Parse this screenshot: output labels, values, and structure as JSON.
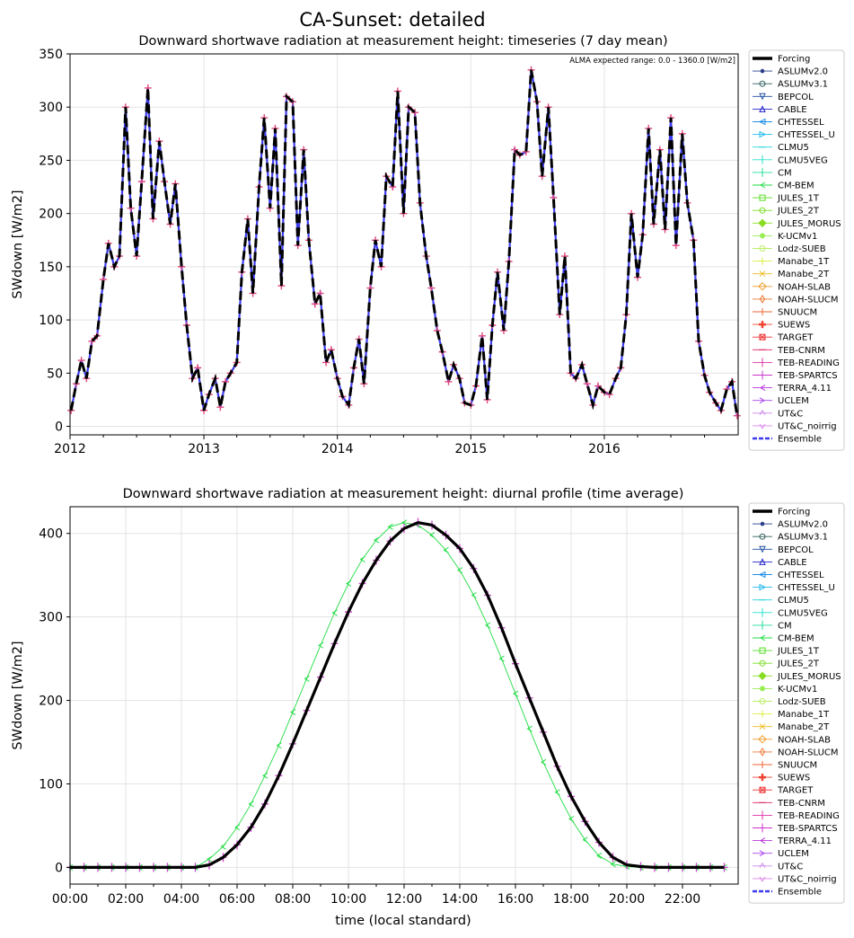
{
  "suptitle": "CA-Sunset: detailed",
  "chart_data": [
    {
      "type": "line",
      "title": "Downward shortwave radiation at measurement height: timeseries (7 day mean)",
      "annotation": "ALMA expected range: 0.0 - 1360.0 [W/m2]",
      "ylabel": "SWdown [W/m2]",
      "xlabel": "",
      "xlim": [
        "2012-01-01",
        "2017-01-01"
      ],
      "ylim": [
        -8,
        350
      ],
      "xticks": [
        "2012",
        "2013",
        "2014",
        "2015",
        "2016"
      ],
      "yticks": [
        "0",
        "50",
        "100",
        "150",
        "200",
        "250",
        "300",
        "350"
      ],
      "grid": true,
      "legend_position": "outside-right",
      "series": [
        {
          "name": "Forcing",
          "x": [
            "2012-01-04",
            "2012-01-18",
            "2012-02-01",
            "2012-02-15",
            "2012-03-01",
            "2012-03-15",
            "2012-04-01",
            "2012-04-15",
            "2012-05-01",
            "2012-05-15",
            "2012-06-01",
            "2012-06-15",
            "2012-07-01",
            "2012-07-15",
            "2012-08-01",
            "2012-08-15",
            "2012-09-01",
            "2012-09-15",
            "2012-10-01",
            "2012-10-15",
            "2012-11-01",
            "2012-11-15",
            "2012-12-01",
            "2012-12-15",
            "2013-01-01",
            "2013-01-15",
            "2013-02-01",
            "2013-02-15",
            "2013-03-01",
            "2013-03-15",
            "2013-04-01",
            "2013-04-15",
            "2013-05-01",
            "2013-05-15",
            "2013-06-01",
            "2013-06-15",
            "2013-07-01",
            "2013-07-15",
            "2013-08-01",
            "2013-08-15",
            "2013-09-01",
            "2013-09-15",
            "2013-10-01",
            "2013-10-15",
            "2013-11-01",
            "2013-11-15",
            "2013-12-01",
            "2013-12-15",
            "2014-01-01",
            "2014-01-15",
            "2014-02-01",
            "2014-02-15",
            "2014-03-01",
            "2014-03-15",
            "2014-04-01",
            "2014-04-15",
            "2014-05-01",
            "2014-05-15",
            "2014-06-01",
            "2014-06-15",
            "2014-07-01",
            "2014-07-15",
            "2014-08-01",
            "2014-08-15",
            "2014-09-01",
            "2014-09-15",
            "2014-10-01",
            "2014-10-15",
            "2014-11-01",
            "2014-11-15",
            "2014-12-01",
            "2014-12-15",
            "2015-01-01",
            "2015-01-15",
            "2015-02-01",
            "2015-02-15",
            "2015-03-01",
            "2015-03-15",
            "2015-04-01",
            "2015-04-15",
            "2015-05-01",
            "2015-05-15",
            "2015-06-01",
            "2015-06-15",
            "2015-07-01",
            "2015-07-15",
            "2015-08-01",
            "2015-08-15",
            "2015-09-01",
            "2015-09-15",
            "2015-10-01",
            "2015-10-15",
            "2015-11-01",
            "2015-11-15",
            "2015-12-01",
            "2015-12-15",
            "2016-01-01",
            "2016-01-15",
            "2016-02-01",
            "2016-02-15",
            "2016-03-01",
            "2016-03-15",
            "2016-04-01",
            "2016-04-15",
            "2016-05-01",
            "2016-05-15",
            "2016-06-01",
            "2016-06-15",
            "2016-07-01",
            "2016-07-15",
            "2016-08-01",
            "2016-08-15",
            "2016-09-01",
            "2016-09-15",
            "2016-10-01",
            "2016-10-15",
            "2016-11-01",
            "2016-11-15",
            "2016-12-01",
            "2016-12-15",
            "2016-12-29"
          ],
          "values": [
            15,
            40,
            62,
            45,
            80,
            85,
            138,
            172,
            150,
            160,
            300,
            205,
            160,
            230,
            318,
            195,
            268,
            230,
            190,
            228,
            150,
            95,
            45,
            55,
            15,
            30,
            45,
            18,
            42,
            50,
            60,
            145,
            195,
            125,
            225,
            290,
            205,
            280,
            132,
            310,
            305,
            170,
            260,
            175,
            115,
            125,
            60,
            72,
            45,
            28,
            20,
            55,
            82,
            40,
            130,
            175,
            150,
            235,
            225,
            315,
            200,
            300,
            295,
            210,
            160,
            130,
            90,
            70,
            42,
            58,
            45,
            22,
            20,
            38,
            85,
            25,
            95,
            145,
            90,
            155,
            260,
            255,
            258,
            335,
            305,
            235,
            300,
            215,
            105,
            160,
            50,
            45,
            58,
            40,
            20,
            38,
            32,
            30,
            45,
            55,
            105,
            200,
            140,
            180,
            280,
            190,
            260,
            185,
            290,
            170,
            275,
            210,
            175,
            80,
            48,
            32,
            22,
            15,
            35,
            42,
            10
          ]
        },
        {
          "name": "Ensemble",
          "x": [
            "2012-01-04",
            "2012-03-15",
            "2012-07-01",
            "2012-11-15",
            "2013-07-01",
            "2013-12-15",
            "2014-07-01",
            "2014-12-15",
            "2015-07-01",
            "2015-12-15",
            "2016-07-01",
            "2016-12-29"
          ],
          "values": [
            15,
            85,
            160,
            95,
            205,
            72,
            200,
            22,
            305,
            38,
            275,
            10
          ]
        }
      ]
    },
    {
      "type": "line",
      "title": "Downward shortwave radiation at measurement height: diurnal profile (time average)",
      "ylabel": "SWdown [W/m2]",
      "xlabel": "time (local standard)",
      "xlim": [
        0,
        24
      ],
      "ylim": [
        -20,
        432
      ],
      "xticks": [
        "00:00",
        "02:00",
        "04:00",
        "06:00",
        "08:00",
        "10:00",
        "12:00",
        "14:00",
        "16:00",
        "18:00",
        "20:00",
        "22:00"
      ],
      "yticks": [
        "0",
        "100",
        "200",
        "300",
        "400"
      ],
      "grid": true,
      "legend_position": "outside-right",
      "series": [
        {
          "name": "Forcing",
          "x": [
            0,
            0.5,
            1,
            1.5,
            2,
            2.5,
            3,
            3.5,
            4,
            4.5,
            5,
            5.5,
            6,
            6.5,
            7,
            7.5,
            8,
            8.5,
            9,
            9.5,
            10,
            10.5,
            11,
            11.5,
            12,
            12.5,
            13,
            13.5,
            14,
            14.5,
            15,
            15.5,
            16,
            16.5,
            17,
            17.5,
            18,
            18.5,
            19,
            19.5,
            20,
            20.5,
            21,
            21.5,
            22,
            22.5,
            23,
            23.5
          ],
          "values": [
            0,
            0,
            0,
            0,
            0,
            0,
            0,
            0,
            0,
            0,
            3,
            12,
            27,
            48,
            76,
            110,
            148,
            188,
            228,
            268,
            306,
            340,
            368,
            391,
            406,
            413,
            410,
            398,
            382,
            358,
            326,
            287,
            244,
            203,
            162,
            121,
            85,
            55,
            30,
            12,
            3,
            1,
            0,
            0,
            0,
            0,
            0,
            0
          ]
        },
        {
          "name": "CM-BEM",
          "x": [
            0,
            0.5,
            1,
            1.5,
            2,
            2.5,
            3,
            3.5,
            4,
            4.5,
            5,
            5.5,
            6,
            6.5,
            7,
            7.5,
            8,
            8.5,
            9,
            9.5,
            10,
            10.5,
            11,
            11.5,
            12,
            12.5,
            13,
            13.5,
            14,
            14.5,
            15,
            15.5,
            16,
            16.5,
            17,
            17.5,
            18,
            18.5,
            19,
            19.5,
            20,
            20.5,
            21,
            21.5,
            22,
            22.5,
            23,
            23.5
          ],
          "values": [
            0,
            0,
            0,
            0,
            0,
            0,
            0,
            0,
            0,
            0,
            10,
            25,
            48,
            76,
            110,
            146,
            186,
            226,
            266,
            305,
            340,
            369,
            392,
            408,
            413,
            410,
            398,
            380,
            356,
            326,
            290,
            250,
            208,
            166,
            126,
            90,
            58,
            33,
            14,
            4,
            1,
            0,
            0,
            0,
            0,
            0,
            0,
            0
          ]
        }
      ]
    }
  ],
  "legend": [
    {
      "name": "Forcing",
      "color": "#000000",
      "marker": "none",
      "style": "thick"
    },
    {
      "name": "ASLUMv2.0",
      "color": "#2a3f8a",
      "marker": "dot",
      "style": "solid"
    },
    {
      "name": "ASLUMv3.1",
      "color": "#2f5f5a",
      "marker": "circle",
      "style": "solid"
    },
    {
      "name": "BEPCOL",
      "color": "#1f4fa0",
      "marker": "tri-down",
      "style": "solid"
    },
    {
      "name": "CABLE",
      "color": "#2222cc",
      "marker": "tri-up",
      "style": "solid"
    },
    {
      "name": "CHTESSEL",
      "color": "#1e8ee6",
      "marker": "tri-left",
      "style": "solid"
    },
    {
      "name": "CHTESSEL_U",
      "color": "#22bbee",
      "marker": "tri-right",
      "style": "solid"
    },
    {
      "name": "CLMU5",
      "color": "#22d4dd",
      "marker": "hline",
      "style": "solid"
    },
    {
      "name": "CLMU5VEG",
      "color": "#22e0cc",
      "marker": "vline",
      "style": "solid"
    },
    {
      "name": "CM",
      "color": "#22dd99",
      "marker": "vline",
      "style": "solid"
    },
    {
      "name": "CM-BEM",
      "color": "#22dd44",
      "marker": "lt",
      "style": "solid"
    },
    {
      "name": "JULES_1T",
      "color": "#55dd22",
      "marker": "square",
      "style": "solid"
    },
    {
      "name": "JULES_2T",
      "color": "#77dd22",
      "marker": "hexagon",
      "style": "solid"
    },
    {
      "name": "JULES_MORUS",
      "color": "#88dd22",
      "marker": "filled-diamond",
      "style": "solid"
    },
    {
      "name": "K-UCMv1",
      "color": "#99ee55",
      "marker": "star",
      "style": "solid"
    },
    {
      "name": "Lodz-SUEB",
      "color": "#bbee66",
      "marker": "octagon",
      "style": "solid"
    },
    {
      "name": "Manabe_1T",
      "color": "#ddee44",
      "marker": "plus",
      "style": "solid"
    },
    {
      "name": "Manabe_2T",
      "color": "#eebb22",
      "marker": "x",
      "style": "solid"
    },
    {
      "name": "NOAH-SLAB",
      "color": "#ee9922",
      "marker": "diamond",
      "style": "solid"
    },
    {
      "name": "NOAH-SLUCM",
      "color": "#ee7733",
      "marker": "thin-diamond",
      "style": "solid"
    },
    {
      "name": "SNUUCM",
      "color": "#ee6633",
      "marker": "plus",
      "style": "solid"
    },
    {
      "name": "SUEWS",
      "color": "#ee4433",
      "marker": "filled-plus",
      "style": "solid"
    },
    {
      "name": "TARGET",
      "color": "#ee3333",
      "marker": "square-x",
      "style": "solid"
    },
    {
      "name": "TEB-CNRM",
      "color": "#dd2266",
      "marker": "hline",
      "style": "solid"
    },
    {
      "name": "TEB-READING",
      "color": "#dd33aa",
      "marker": "vline",
      "style": "solid"
    },
    {
      "name": "TEB-SPARTCS",
      "color": "#cc33cc",
      "marker": "vline",
      "style": "solid"
    },
    {
      "name": "TERRA_4.11",
      "color": "#bb33dd",
      "marker": "lt",
      "style": "solid"
    },
    {
      "name": "UCLEM",
      "color": "#aa44ee",
      "marker": "gt",
      "style": "solid"
    },
    {
      "name": "UT&C",
      "color": "#cc88ee",
      "marker": "caret-up",
      "style": "solid"
    },
    {
      "name": "UT&C_noirrig",
      "color": "#dd88ee",
      "marker": "caret-down",
      "style": "solid"
    },
    {
      "name": "Ensemble",
      "color": "#3a3aee",
      "marker": "none",
      "style": "dash"
    }
  ]
}
